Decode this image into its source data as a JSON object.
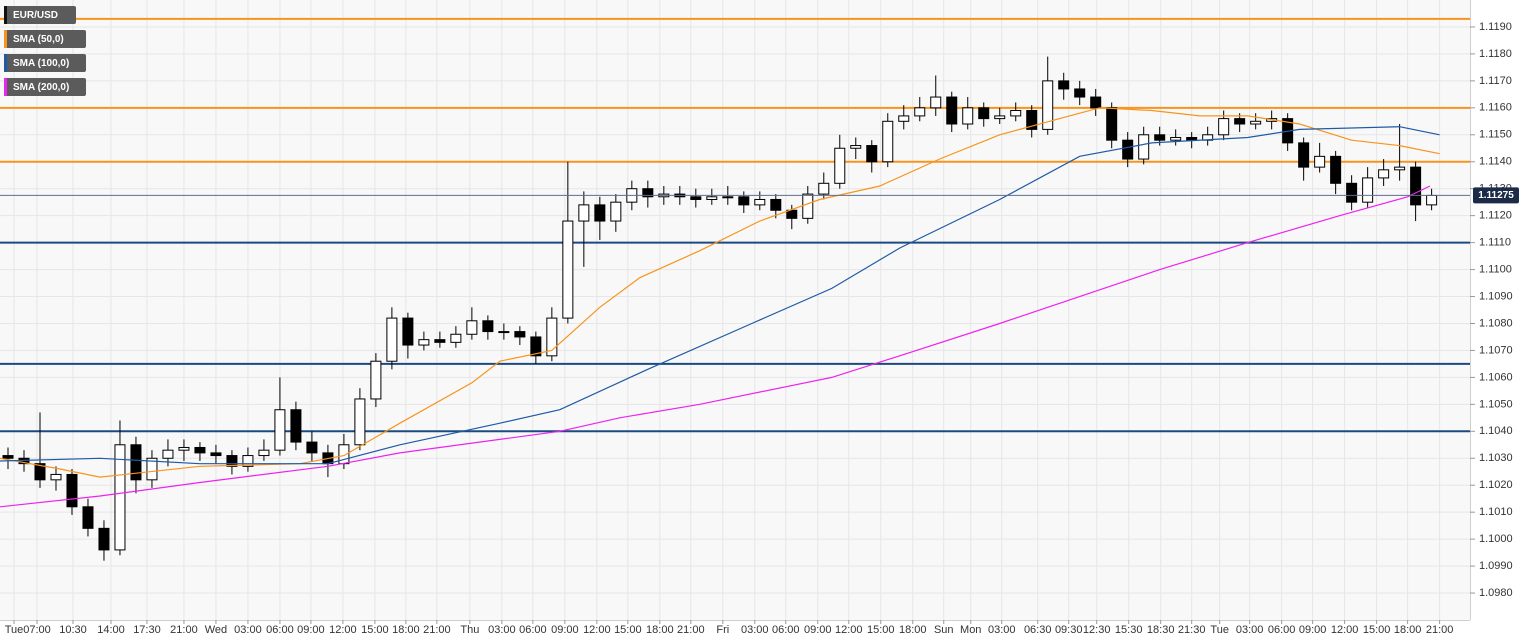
{
  "chart_data": {
    "type": "candlestick",
    "name": "EUR/USD",
    "color": "#000000",
    "grid": true,
    "xlim": [
      -0.5,
      91.4
    ],
    "ylim": [
      1.097,
      1.12
    ],
    "yticks": [
      {
        "value": 1.098,
        "label": "1.0980"
      },
      {
        "value": 1.099,
        "label": "1.0990"
      },
      {
        "value": 1.1,
        "label": "1.1000"
      },
      {
        "value": 1.101,
        "label": "1.1010"
      },
      {
        "value": 1.102,
        "label": "1.1020"
      },
      {
        "value": 1.103,
        "label": "1.1030"
      },
      {
        "value": 1.104,
        "label": "1.1040"
      },
      {
        "value": 1.105,
        "label": "1.1050"
      },
      {
        "value": 1.106,
        "label": "1.1060"
      },
      {
        "value": 1.107,
        "label": "1.1070"
      },
      {
        "value": 1.108,
        "label": "1.1080"
      },
      {
        "value": 1.109,
        "label": "1.1090"
      },
      {
        "value": 1.11,
        "label": "1.1100"
      },
      {
        "value": 1.111,
        "label": "1.1110"
      },
      {
        "value": 1.112,
        "label": "1.1120"
      },
      {
        "value": 1.113,
        "label": "1.1130"
      },
      {
        "value": 1.114,
        "label": "1.1140"
      },
      {
        "value": 1.115,
        "label": "1.1150"
      },
      {
        "value": 1.116,
        "label": "1.1160"
      },
      {
        "value": 1.117,
        "label": "1.1170"
      },
      {
        "value": 1.118,
        "label": "1.1180"
      },
      {
        "value": 1.119,
        "label": "1.1190"
      }
    ],
    "xticks": [
      {
        "value": 0.375,
        "label": "Tue"
      },
      {
        "value": 1.8125,
        "label": "07:00"
      },
      {
        "value": 4.0625,
        "label": "10:30"
      },
      {
        "value": 6.4375,
        "label": "14:00"
      },
      {
        "value": 8.6875,
        "label": "17:30"
      },
      {
        "value": 11,
        "label": "21:00"
      },
      {
        "value": 13,
        "label": "Wed"
      },
      {
        "value": 15,
        "label": "03:00"
      },
      {
        "value": 17,
        "label": "06:00"
      },
      {
        "value": 18.9375,
        "label": "09:00"
      },
      {
        "value": 20.9375,
        "label": "12:00"
      },
      {
        "value": 22.9375,
        "label": "15:00"
      },
      {
        "value": 24.875,
        "label": "18:00"
      },
      {
        "value": 26.8125,
        "label": "21:00"
      },
      {
        "value": 28.875,
        "label": "Thu"
      },
      {
        "value": 30.875,
        "label": "03:00"
      },
      {
        "value": 32.8125,
        "label": "06:00"
      },
      {
        "value": 34.8125,
        "label": "09:00"
      },
      {
        "value": 36.8125,
        "label": "12:00"
      },
      {
        "value": 38.75,
        "label": "15:00"
      },
      {
        "value": 40.75,
        "label": "18:00"
      },
      {
        "value": 42.6875,
        "label": "21:00"
      },
      {
        "value": 44.6875,
        "label": "Fri"
      },
      {
        "value": 46.6875,
        "label": "03:00"
      },
      {
        "value": 48.625,
        "label": "06:00"
      },
      {
        "value": 50.625,
        "label": "09:00"
      },
      {
        "value": 52.5625,
        "label": "12:00"
      },
      {
        "value": 54.5625,
        "label": "15:00"
      },
      {
        "value": 56.5625,
        "label": "18:00"
      },
      {
        "value": 58.5,
        "label": "Sun"
      },
      {
        "value": 60.1875,
        "label": "Mon"
      },
      {
        "value": 62.125,
        "label": "03:00"
      },
      {
        "value": 64.375,
        "label": "06:30"
      },
      {
        "value": 66.3125,
        "label": "09:30"
      },
      {
        "value": 68.0625,
        "label": "12:30"
      },
      {
        "value": 70.0625,
        "label": "15:30"
      },
      {
        "value": 72.0625,
        "label": "18:30"
      },
      {
        "value": 74,
        "label": "21:30"
      },
      {
        "value": 75.75,
        "label": "Tue"
      },
      {
        "value": 77.625,
        "label": "03:00"
      },
      {
        "value": 79.625,
        "label": "06:00"
      },
      {
        "value": 81.5625,
        "label": "09:00"
      },
      {
        "value": 83.5625,
        "label": "12:00"
      },
      {
        "value": 85.5625,
        "label": "15:00"
      },
      {
        "value": 87.5,
        "label": "18:00"
      },
      {
        "value": 89.5,
        "label": "21:00"
      }
    ],
    "x": [
      0,
      1,
      2,
      3,
      4,
      5,
      6,
      7,
      8,
      9,
      10,
      11,
      12,
      13,
      14,
      15,
      16,
      17,
      18,
      19,
      20,
      21,
      22,
      23,
      24,
      25,
      26,
      27,
      28,
      29,
      30,
      31,
      32,
      33,
      34,
      35,
      36,
      37,
      38,
      39,
      40,
      41,
      42,
      43,
      44,
      45,
      46,
      47,
      48,
      49,
      50,
      51,
      52,
      53,
      54,
      55,
      56,
      57,
      58,
      59,
      60,
      61,
      62,
      63,
      64,
      65,
      66,
      67,
      68,
      69,
      70,
      71,
      72,
      73,
      74,
      75,
      76,
      77,
      78,
      79,
      80,
      81,
      82,
      83,
      84,
      85,
      86,
      87,
      88,
      89
    ],
    "ohlc": [
      [
        1.1031,
        1.1034,
        1.1026,
        1.103
      ],
      [
        1.103,
        1.1033,
        1.1025,
        1.1028
      ],
      [
        1.1028,
        1.1047,
        1.1019,
        1.1022
      ],
      [
        1.1022,
        1.1027,
        1.1018,
        1.1024
      ],
      [
        1.1024,
        1.1026,
        1.1009,
        1.1012
      ],
      [
        1.1012,
        1.1015,
        1.1001,
        1.1004
      ],
      [
        1.1004,
        1.1007,
        1.0992,
        1.0996
      ],
      [
        1.0996,
        1.1044,
        1.0994,
        1.1035
      ],
      [
        1.1035,
        1.1038,
        1.1017,
        1.1022
      ],
      [
        1.1022,
        1.1033,
        1.1019,
        1.103
      ],
      [
        1.103,
        1.1037,
        1.1027,
        1.1033
      ],
      [
        1.1033,
        1.1037,
        1.1029,
        1.1034
      ],
      [
        1.1034,
        1.1036,
        1.1029,
        1.1032
      ],
      [
        1.1032,
        1.1035,
        1.1028,
        1.1031
      ],
      [
        1.1031,
        1.1033,
        1.1024,
        1.1027
      ],
      [
        1.1027,
        1.1034,
        1.1025,
        1.1031
      ],
      [
        1.1031,
        1.1037,
        1.1029,
        1.1033
      ],
      [
        1.1033,
        1.106,
        1.1031,
        1.1048
      ],
      [
        1.1048,
        1.1051,
        1.1033,
        1.1036
      ],
      [
        1.1036,
        1.104,
        1.1029,
        1.1032
      ],
      [
        1.1032,
        1.1035,
        1.1023,
        1.1028
      ],
      [
        1.1028,
        1.1039,
        1.1026,
        1.1035
      ],
      [
        1.1035,
        1.1056,
        1.1033,
        1.1052
      ],
      [
        1.1052,
        1.1069,
        1.1049,
        1.1066
      ],
      [
        1.1066,
        1.1086,
        1.1063,
        1.1082
      ],
      [
        1.1082,
        1.1084,
        1.1067,
        1.1072
      ],
      [
        1.1072,
        1.1077,
        1.107,
        1.1074
      ],
      [
        1.1074,
        1.1077,
        1.1071,
        1.1073
      ],
      [
        1.1073,
        1.1079,
        1.1071,
        1.1076
      ],
      [
        1.1076,
        1.1086,
        1.1074,
        1.1081
      ],
      [
        1.1081,
        1.1083,
        1.1074,
        1.1077
      ],
      [
        1.1077,
        1.108,
        1.1074,
        1.1077
      ],
      [
        1.1077,
        1.1079,
        1.1072,
        1.1075
      ],
      [
        1.1075,
        1.1077,
        1.1065,
        1.1068
      ],
      [
        1.1068,
        1.1086,
        1.1066,
        1.1082
      ],
      [
        1.1082,
        1.114,
        1.108,
        1.1118
      ],
      [
        1.1118,
        1.1129,
        1.1101,
        1.1124
      ],
      [
        1.1124,
        1.1127,
        1.1111,
        1.1118
      ],
      [
        1.1118,
        1.1128,
        1.1114,
        1.1125
      ],
      [
        1.1125,
        1.1133,
        1.1122,
        1.113
      ],
      [
        1.113,
        1.1133,
        1.1123,
        1.1127
      ],
      [
        1.1127,
        1.1131,
        1.1124,
        1.1128
      ],
      [
        1.1128,
        1.1131,
        1.1124,
        1.1127
      ],
      [
        1.1127,
        1.113,
        1.1123,
        1.1126
      ],
      [
        1.1126,
        1.113,
        1.1124,
        1.1127
      ],
      [
        1.1127,
        1.1131,
        1.1124,
        1.1127
      ],
      [
        1.1127,
        1.1129,
        1.1121,
        1.1124
      ],
      [
        1.1124,
        1.1129,
        1.1122,
        1.1126
      ],
      [
        1.1126,
        1.1128,
        1.1119,
        1.1122
      ],
      [
        1.1122,
        1.1124,
        1.1115,
        1.1119
      ],
      [
        1.1119,
        1.1131,
        1.1117,
        1.1128
      ],
      [
        1.1128,
        1.1136,
        1.1126,
        1.1132
      ],
      [
        1.1132,
        1.115,
        1.113,
        1.1145
      ],
      [
        1.1145,
        1.1149,
        1.1141,
        1.1146
      ],
      [
        1.1146,
        1.1148,
        1.1136,
        1.114
      ],
      [
        1.114,
        1.1158,
        1.1138,
        1.1155
      ],
      [
        1.1155,
        1.1161,
        1.1152,
        1.1157
      ],
      [
        1.1157,
        1.1164,
        1.1155,
        1.116
      ],
      [
        1.116,
        1.1172,
        1.1157,
        1.1164
      ],
      [
        1.1164,
        1.1166,
        1.1151,
        1.1154
      ],
      [
        1.1154,
        1.1164,
        1.1152,
        1.116
      ],
      [
        1.116,
        1.1162,
        1.1153,
        1.1156
      ],
      [
        1.1156,
        1.116,
        1.1154,
        1.1157
      ],
      [
        1.1157,
        1.1162,
        1.1155,
        1.1159
      ],
      [
        1.1159,
        1.1161,
        1.1149,
        1.1152
      ],
      [
        1.1152,
        1.1179,
        1.115,
        1.117
      ],
      [
        1.117,
        1.1173,
        1.1163,
        1.1167
      ],
      [
        1.1167,
        1.117,
        1.1161,
        1.1164
      ],
      [
        1.1164,
        1.1167,
        1.1157,
        1.116
      ],
      [
        1.116,
        1.1162,
        1.1145,
        1.1148
      ],
      [
        1.1148,
        1.1151,
        1.1138,
        1.1141
      ],
      [
        1.1141,
        1.1153,
        1.1139,
        1.115
      ],
      [
        1.115,
        1.1153,
        1.1146,
        1.1148
      ],
      [
        1.1148,
        1.1152,
        1.1146,
        1.1149
      ],
      [
        1.1149,
        1.1151,
        1.1145,
        1.1148
      ],
      [
        1.1148,
        1.1153,
        1.1146,
        1.115
      ],
      [
        1.115,
        1.1159,
        1.1148,
        1.1156
      ],
      [
        1.1156,
        1.1158,
        1.1151,
        1.1154
      ],
      [
        1.1154,
        1.1158,
        1.1152,
        1.1155
      ],
      [
        1.1155,
        1.1159,
        1.1152,
        1.1156
      ],
      [
        1.1156,
        1.1158,
        1.1144,
        1.1147
      ],
      [
        1.1147,
        1.1149,
        1.1133,
        1.1138
      ],
      [
        1.1138,
        1.1147,
        1.1136,
        1.1142
      ],
      [
        1.1142,
        1.1144,
        1.1128,
        1.1132
      ],
      [
        1.1132,
        1.1135,
        1.1122,
        1.1125
      ],
      [
        1.1125,
        1.1138,
        1.1123,
        1.1134
      ],
      [
        1.1134,
        1.1141,
        1.1131,
        1.1137
      ],
      [
        1.1137,
        1.1154,
        1.1133,
        1.1138
      ],
      [
        1.1138,
        1.114,
        1.1118,
        1.1124
      ],
      [
        1.1124,
        1.113,
        1.1122,
        1.11275
      ]
    ],
    "series": [
      {
        "name": "SMA (50,0)",
        "color": "#f7941d",
        "x": [
          -0.5,
          3.25,
          5.75,
          12,
          18.25,
          21,
          24.5,
          29,
          30.75,
          34,
          37,
          39.5,
          43.25,
          47,
          50.75,
          54.5,
          58.25,
          62,
          65.75,
          68.25,
          71.5,
          74.5,
          77.5,
          80.75,
          84,
          87,
          89.5
        ],
        "values": [
          1.103,
          1.1026,
          1.1023,
          1.1027,
          1.1028,
          1.1031,
          1.1043,
          1.1058,
          1.1066,
          1.107,
          1.1086,
          1.1097,
          1.1107,
          1.1118,
          1.1126,
          1.1131,
          1.1141,
          1.115,
          1.1156,
          1.116,
          1.1159,
          1.1157,
          1.1157,
          1.1154,
          1.1148,
          1.1146,
          1.1143
        ]
      },
      {
        "name": "SMA (100,0)",
        "color": "#1f5aa6",
        "x": [
          -0.5,
          5.75,
          12,
          20,
          24.5,
          30.75,
          34.5,
          40,
          46.5,
          51.5,
          55.75,
          62,
          67,
          71.5,
          77.5,
          80.75,
          87,
          89.5
        ],
        "values": [
          1.1029,
          1.103,
          1.1028,
          1.1028,
          1.1035,
          1.1043,
          1.1048,
          1.1063,
          1.108,
          1.1093,
          1.1108,
          1.1126,
          1.1142,
          1.1147,
          1.1149,
          1.1152,
          1.1153,
          1.115
        ]
      },
      {
        "name": "SMA (200,0)",
        "color": "#ee22ee",
        "x": [
          -0.5,
          5.75,
          12,
          20,
          24.5,
          34.5,
          38.25,
          43.25,
          51.5,
          55.75,
          62,
          72,
          77.5,
          83.25,
          87.5,
          88.9
        ],
        "values": [
          1.1012,
          1.1016,
          1.1021,
          1.1027,
          1.1032,
          1.104,
          1.1045,
          1.105,
          1.106,
          1.1068,
          1.108,
          1.11,
          1.111,
          1.112,
          1.1127,
          1.1131
        ]
      }
    ],
    "levels": [
      {
        "value": 1.1193,
        "color": "#f7941d"
      },
      {
        "value": 1.116,
        "color": "#f7941d"
      },
      {
        "value": 1.114,
        "color": "#f7941d"
      },
      {
        "value": 1.111,
        "color": "#1c4a80"
      },
      {
        "value": 1.1065,
        "color": "#1c4a80"
      },
      {
        "value": 1.104,
        "color": "#1c4a80"
      }
    ],
    "last_price": 1.11275,
    "last_price_color": "#1b2b48"
  }
}
